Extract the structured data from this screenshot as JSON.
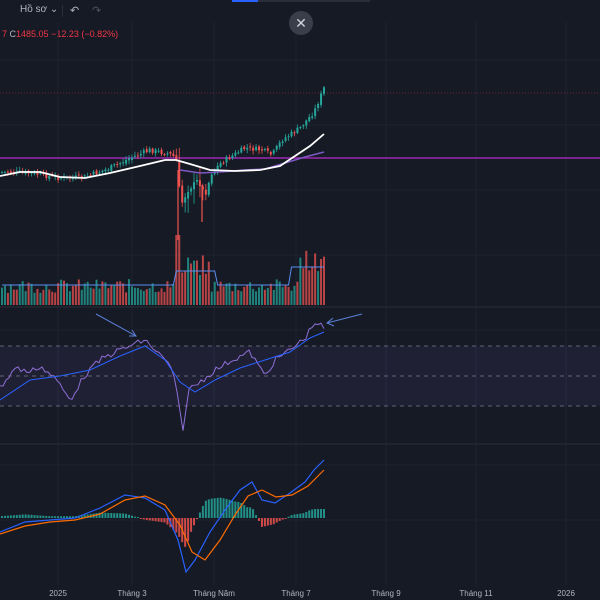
{
  "toolbar": {
    "profile_label": "Hồ sơ",
    "profile_icon": "chevron-down-icon",
    "undo_icon": "undo-icon",
    "redo_icon": "redo-icon",
    "close_icon": "close-icon"
  },
  "legend": {
    "left_fragment": "7",
    "close_prefix": "C",
    "close_value": "1485.05",
    "change": "−12.23 (−0.82%)"
  },
  "time_axis": {
    "labels": [
      "2025",
      "Tháng 3",
      "Tháng Năm",
      "Tháng 7",
      "Tháng 9",
      "Tháng 11",
      "2026"
    ]
  },
  "colors": {
    "background": "#161a25",
    "up": "#26a69a",
    "down": "#ef5350",
    "horizontal_line": "#9c27b0",
    "ma_white": "#ffffff",
    "ma_purple": "#7e57c2",
    "rsi": "#7e57c2",
    "rsi_ma": "#2962ff",
    "macd": "#2962ff",
    "signal": "#ff6d00",
    "arrow": "#5b7fd6"
  },
  "chart_data": {
    "type": "candlestick",
    "series": [
      {
        "name": "price",
        "note": "daily candles, last close 1485.05"
      },
      {
        "name": "volume"
      },
      {
        "name": "RSI",
        "levels": [
          70,
          50,
          30
        ]
      },
      {
        "name": "MACD"
      }
    ]
  }
}
